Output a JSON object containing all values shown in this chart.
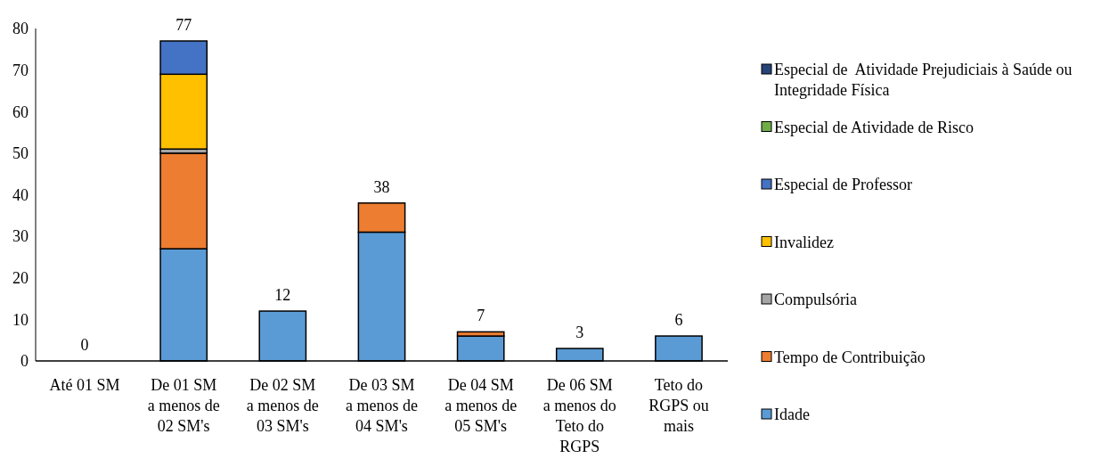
{
  "chart_data": {
    "type": "bar",
    "stacked": true,
    "categories": [
      "Até 01 SM",
      "De 01 SM a menos de 02 SM's",
      "De 02 SM a menos de 03 SM's",
      "De 03 SM a menos de 04 SM's",
      "De 04 SM a menos de 05 SM's",
      "De 06 SM a menos do Teto do RGPS",
      "Teto do RGPS ou mais"
    ],
    "series": [
      {
        "name": "Idade",
        "color": "#5b9bd5",
        "values": [
          0,
          27,
          12,
          31,
          6,
          3,
          6
        ]
      },
      {
        "name": "Tempo de Contribuição",
        "color": "#ed7d31",
        "values": [
          0,
          23,
          0,
          7,
          1,
          0,
          0
        ]
      },
      {
        "name": "Compulsória",
        "color": "#a5a5a5",
        "values": [
          0,
          1,
          0,
          0,
          0,
          0,
          0
        ]
      },
      {
        "name": "Invalidez",
        "color": "#ffc000",
        "values": [
          0,
          18,
          0,
          0,
          0,
          0,
          0
        ]
      },
      {
        "name": "Especial de Professor",
        "color": "#4472c4",
        "values": [
          0,
          8,
          0,
          0,
          0,
          0,
          0
        ]
      },
      {
        "name": "Especial de Atividade de Risco",
        "color": "#70ad47",
        "values": [
          0,
          0,
          0,
          0,
          0,
          0,
          0
        ]
      },
      {
        "name": "Especial de  Atividade Prejudiciais à Saúde ou Integridade Física",
        "color": "#264478",
        "values": [
          0,
          0,
          0,
          0,
          0,
          0,
          0
        ]
      }
    ],
    "totals": [
      "0",
      "77",
      "12",
      "38",
      "7",
      "3",
      "6"
    ],
    "ylim": [
      0,
      80
    ],
    "yticks": [
      0,
      10,
      20,
      30,
      40,
      50,
      60,
      70,
      80
    ],
    "grid": false,
    "legend": "right"
  }
}
